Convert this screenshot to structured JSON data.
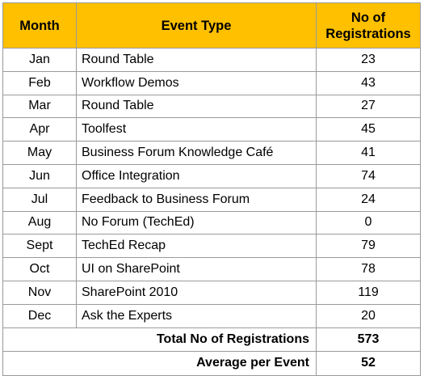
{
  "table": {
    "headers": {
      "month": "Month",
      "event_type": "Event Type",
      "registrations": "No of Registrations"
    },
    "rows": [
      {
        "month": "Jan",
        "event": "Round Table",
        "registrations": "23"
      },
      {
        "month": "Feb",
        "event": "Workflow Demos",
        "registrations": "43"
      },
      {
        "month": "Mar",
        "event": "Round Table",
        "registrations": "27"
      },
      {
        "month": "Apr",
        "event": "Toolfest",
        "registrations": "45"
      },
      {
        "month": "May",
        "event": "Business Forum Knowledge Café",
        "registrations": "41"
      },
      {
        "month": "Jun",
        "event": "Office Integration",
        "registrations": "74"
      },
      {
        "month": "Jul",
        "event": "Feedback to Business Forum",
        "registrations": "24"
      },
      {
        "month": "Aug",
        "event": "No Forum (TechEd)",
        "registrations": "0"
      },
      {
        "month": "Sept",
        "event": "TechEd Recap",
        "registrations": "79"
      },
      {
        "month": "Oct",
        "event": "UI on SharePoint",
        "registrations": "78"
      },
      {
        "month": "Nov",
        "event": "SharePoint 2010",
        "registrations": "119"
      },
      {
        "month": "Dec",
        "event": "Ask the Experts",
        "registrations": "20"
      }
    ],
    "summary": [
      {
        "label": "Total No of Registrations",
        "value": "573"
      },
      {
        "label": "Average per Event",
        "value": "52"
      }
    ]
  },
  "colors": {
    "header_background": "#ffc000",
    "border": "#9a9a9a",
    "text": "#000000"
  }
}
